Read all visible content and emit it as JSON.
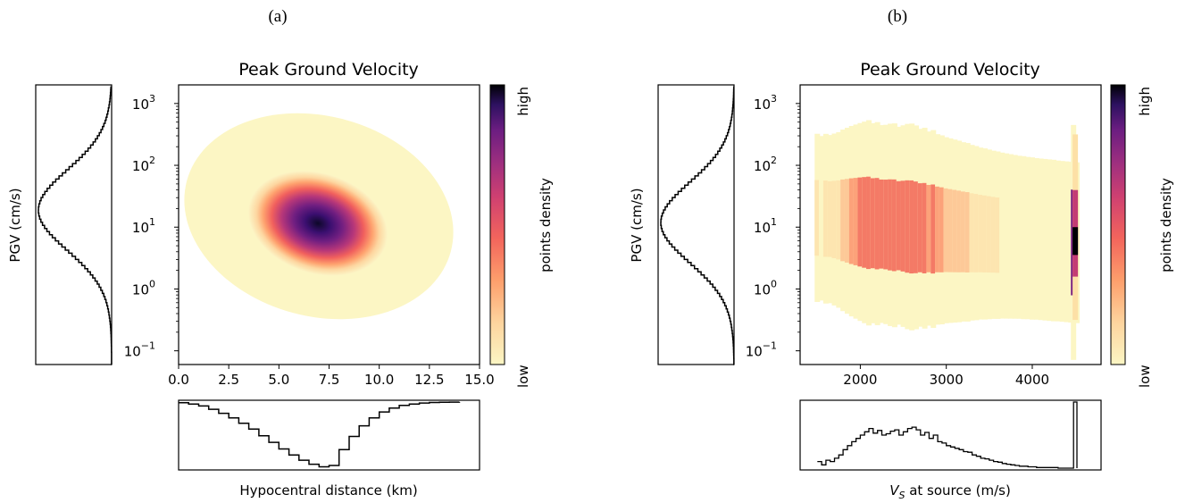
{
  "chart_data": [
    {
      "panel_label": "(a)",
      "type": "heatmap",
      "title": "Peak Ground Velocity",
      "xlabel": "Hypocentral distance (km)",
      "ylabel": "PGV (cm/s)",
      "x_ticks": [
        "0.0",
        "2.5",
        "5.0",
        "7.5",
        "10.0",
        "12.5",
        "15.0"
      ],
      "xlim": [
        0,
        15
      ],
      "y_scale": "log",
      "y_ticks": [
        "10",
        "10",
        "10",
        "10",
        "10"
      ],
      "y_tick_exponents": [
        "−1",
        "0",
        "1",
        "2",
        "3"
      ],
      "ylim": [
        0.06,
        2000
      ],
      "colorbar": {
        "label": "points density",
        "high": "high",
        "low": "low",
        "colormap": "magma_r"
      },
      "density_peak": {
        "x": 7.0,
        "log10_y": 1.1
      },
      "x_histogram": [
        [
          0.0,
          0.01
        ],
        [
          0.5,
          0.03
        ],
        [
          1.0,
          0.06
        ],
        [
          1.5,
          0.11
        ],
        [
          2.0,
          0.17
        ],
        [
          2.5,
          0.24
        ],
        [
          3.0,
          0.32
        ],
        [
          3.5,
          0.41
        ],
        [
          4.0,
          0.51
        ],
        [
          4.5,
          0.61
        ],
        [
          5.0,
          0.71
        ],
        [
          5.5,
          0.8
        ],
        [
          6.0,
          0.88
        ],
        [
          6.5,
          0.94
        ],
        [
          7.0,
          0.98
        ],
        [
          7.5,
          0.96
        ],
        [
          8.0,
          0.72
        ],
        [
          8.5,
          0.52
        ],
        [
          9.0,
          0.36
        ],
        [
          9.5,
          0.24
        ],
        [
          10.0,
          0.15
        ],
        [
          10.5,
          0.09
        ],
        [
          11.0,
          0.05
        ],
        [
          11.5,
          0.03
        ],
        [
          12.0,
          0.015
        ],
        [
          12.5,
          0.007
        ],
        [
          13.0,
          0.003
        ],
        [
          13.5,
          0.001
        ],
        [
          14.0,
          0.0
        ]
      ],
      "y_histogram": {
        "mean_log10": 1.3,
        "sd_log10": 0.65
      }
    },
    {
      "panel_label": "(b)",
      "type": "heatmap",
      "title": "Peak Ground Velocity",
      "xlabel_main": "V",
      "xlabel_sub": "S",
      "xlabel_rest": " at source (m/s)",
      "ylabel": "PGV (cm/s)",
      "x_ticks": [
        "2000",
        "3000",
        "4000"
      ],
      "xlim": [
        1300,
        4800
      ],
      "y_scale": "log",
      "y_ticks": [
        "10",
        "10",
        "10",
        "10",
        "10"
      ],
      "y_tick_exponents": [
        "−1",
        "0",
        "1",
        "2",
        "3"
      ],
      "ylim": [
        0.06,
        2000
      ],
      "colorbar": {
        "label": "points density",
        "high": "high",
        "low": "low",
        "colormap": "magma_r"
      },
      "x_histogram": [
        [
          1500,
          0.9
        ],
        [
          1550,
          0.95
        ],
        [
          1600,
          0.88
        ],
        [
          1650,
          0.9
        ],
        [
          1700,
          0.85
        ],
        [
          1750,
          0.8
        ],
        [
          1800,
          0.72
        ],
        [
          1850,
          0.66
        ],
        [
          1900,
          0.6
        ],
        [
          1950,
          0.55
        ],
        [
          2000,
          0.5
        ],
        [
          2050,
          0.45
        ],
        [
          2100,
          0.4
        ],
        [
          2150,
          0.47
        ],
        [
          2200,
          0.43
        ],
        [
          2250,
          0.5
        ],
        [
          2300,
          0.48
        ],
        [
          2350,
          0.44
        ],
        [
          2400,
          0.42
        ],
        [
          2450,
          0.5
        ],
        [
          2500,
          0.45
        ],
        [
          2550,
          0.4
        ],
        [
          2600,
          0.38
        ],
        [
          2650,
          0.42
        ],
        [
          2700,
          0.5
        ],
        [
          2750,
          0.46
        ],
        [
          2800,
          0.55
        ],
        [
          2850,
          0.5
        ],
        [
          2900,
          0.6
        ],
        [
          2950,
          0.62
        ],
        [
          3000,
          0.66
        ],
        [
          3050,
          0.68
        ],
        [
          3100,
          0.7
        ],
        [
          3150,
          0.72
        ],
        [
          3200,
          0.75
        ],
        [
          3250,
          0.76
        ],
        [
          3300,
          0.8
        ],
        [
          3350,
          0.82
        ],
        [
          3400,
          0.85
        ],
        [
          3450,
          0.86
        ],
        [
          3500,
          0.88
        ],
        [
          3550,
          0.9
        ],
        [
          3600,
          0.91
        ],
        [
          3650,
          0.93
        ],
        [
          3700,
          0.94
        ],
        [
          3750,
          0.95
        ],
        [
          3800,
          0.96
        ],
        [
          3850,
          0.97
        ],
        [
          3900,
          0.97
        ],
        [
          3950,
          0.98
        ],
        [
          4000,
          0.98
        ],
        [
          4050,
          0.99
        ],
        [
          4100,
          0.99
        ],
        [
          4150,
          0.99
        ],
        [
          4200,
          0.99
        ],
        [
          4250,
          0.99
        ],
        [
          4300,
          1.0
        ],
        [
          4350,
          1.0
        ],
        [
          4400,
          1.0
        ],
        [
          4450,
          1.0
        ],
        [
          4480,
          0.0
        ],
        [
          4520,
          1.0
        ]
      ],
      "y_histogram": {
        "mean_log10": 1.1,
        "sd_log10": 0.65
      }
    }
  ]
}
